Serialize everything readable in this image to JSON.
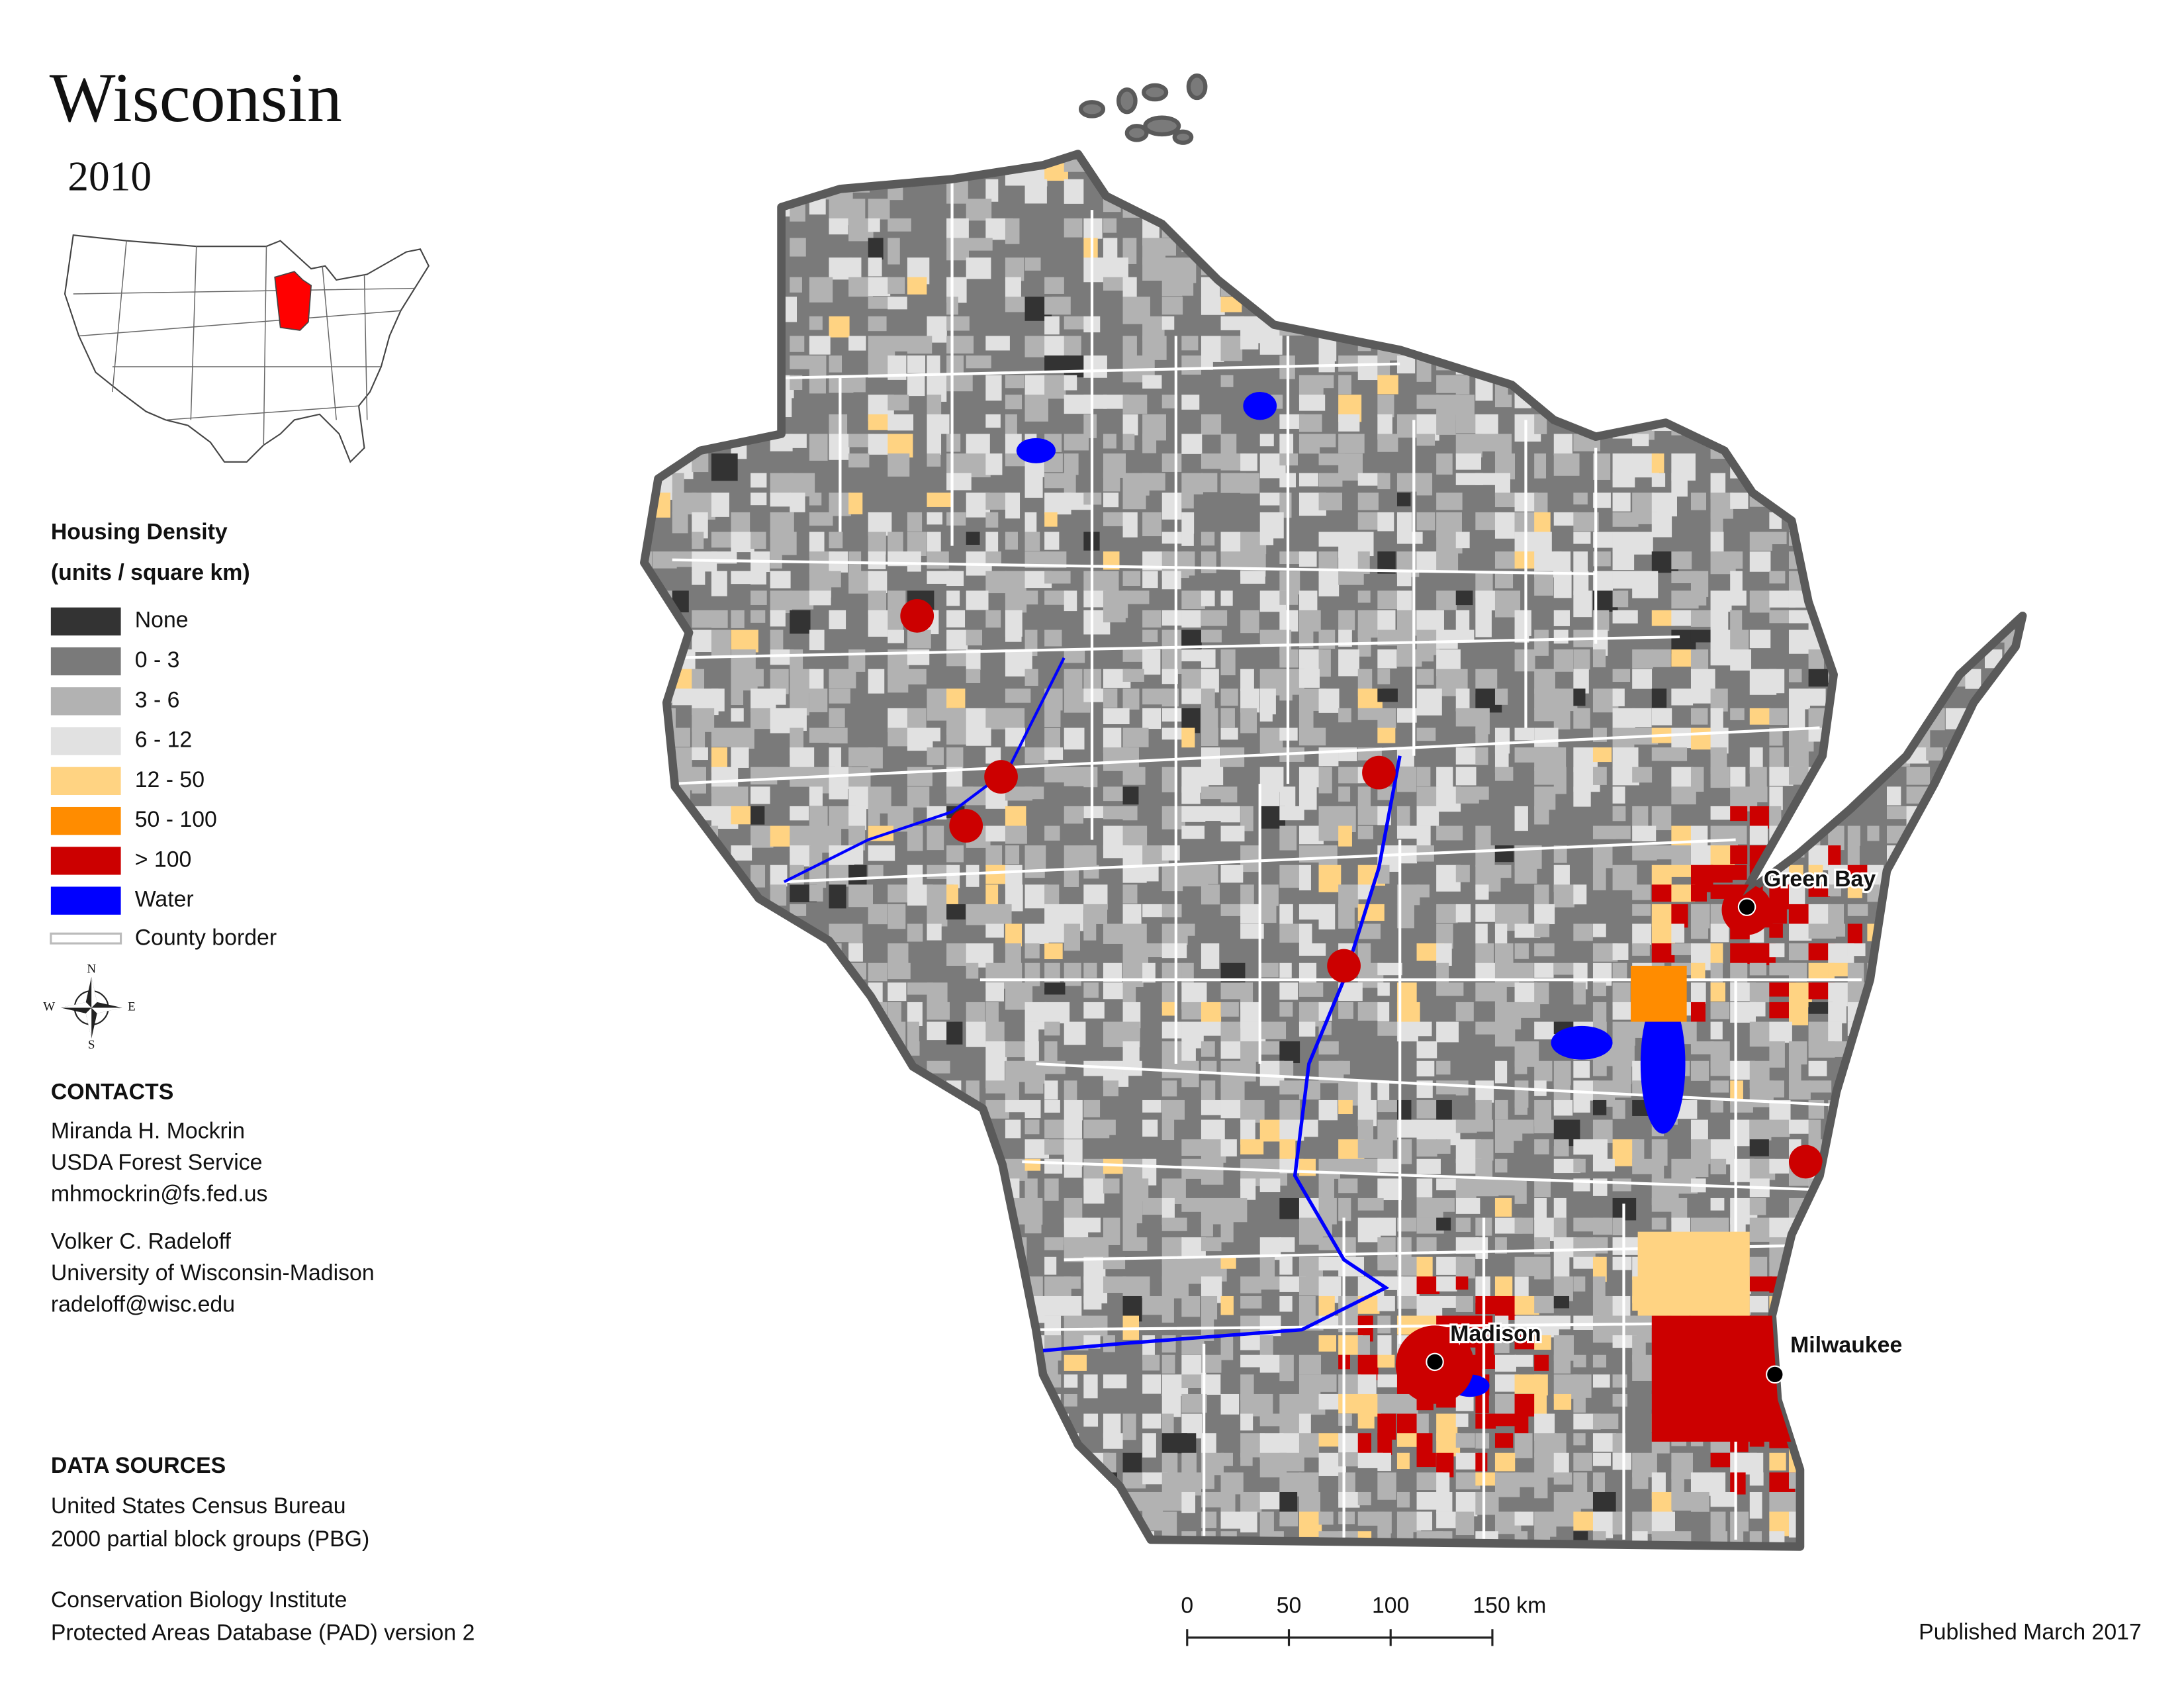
{
  "title": "Wisconsin",
  "year": "2010",
  "legend": {
    "title": "Housing Density",
    "subtitle": "(units / square km)",
    "items": [
      {
        "label": "None",
        "color": "#333333"
      },
      {
        "label": "0 - 3",
        "color": "#7a7a7a"
      },
      {
        "label": "3 - 6",
        "color": "#b2b2b2"
      },
      {
        "label": "6 - 12",
        "color": "#e1e1e1"
      },
      {
        "label": "12 - 50",
        "color": "#ffd382"
      },
      {
        "label": "50 - 100",
        "color": "#ff8c00"
      },
      {
        "label": "> 100",
        "color": "#cc0000"
      },
      {
        "label": "Water",
        "color": "#0000ff"
      }
    ],
    "border_label": "County border"
  },
  "compass": [
    "N",
    "E",
    "S",
    "W"
  ],
  "cities": [
    "Green Bay",
    "Madison",
    "Milwaukee"
  ],
  "contacts": {
    "heading": "CONTACTS",
    "people": [
      [
        "Miranda H. Mockrin",
        "USDA Forest Service",
        "mhmockrin@fs.fed.us"
      ],
      [
        "Volker C. Radeloff",
        "University of Wisconsin-Madison",
        "radeloff@wisc.edu"
      ]
    ]
  },
  "data_sources": {
    "heading": "DATA SOURCES",
    "groups": [
      [
        "United States Census Bureau",
        "2000 partial block groups (PBG)"
      ],
      [
        "Conservation Biology Institute",
        "Protected Areas Database (PAD) version 2"
      ]
    ]
  },
  "scale_bar": [
    "0",
    "50",
    "100",
    "150 km"
  ],
  "published": "Published March 2017"
}
